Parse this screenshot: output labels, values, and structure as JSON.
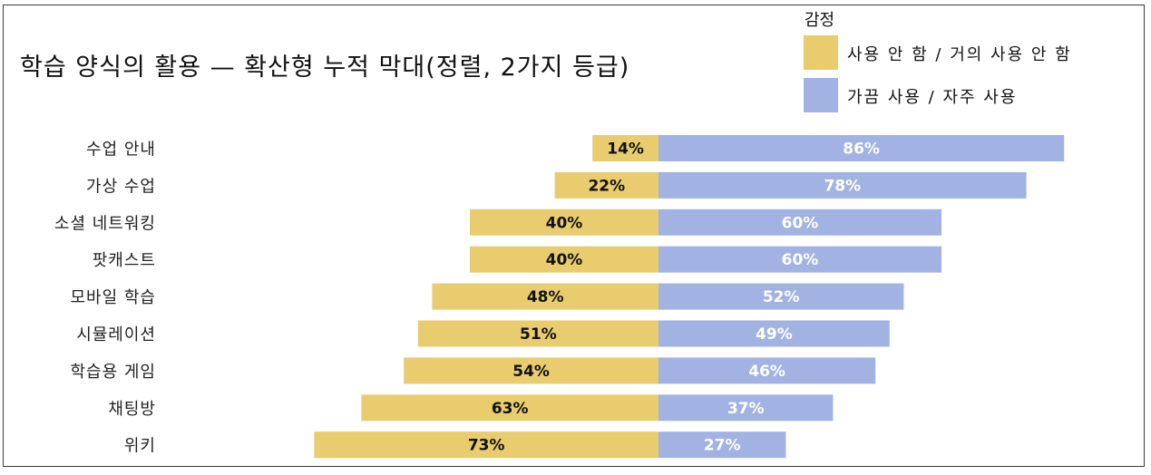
{
  "chart_data": {
    "type": "bar",
    "title": "학습 양식의 활용 — 확산형 누적 막대(정렬, 2가지 등급)",
    "legend_title": "감정",
    "legend_position": "top-right",
    "categories": [
      "수업 안내",
      "가상 수업",
      "소셜 네트워킹",
      "팟캐스트",
      "모바일 학습",
      "시뮬레이션",
      "학습용 게임",
      "채팅방",
      "위키"
    ],
    "series": [
      {
        "name": "사용 안 함 / 거의 사용 안 함",
        "color": "#e8cc6e",
        "label_color": "#111111",
        "direction": "left",
        "values": [
          14,
          22,
          40,
          40,
          48,
          51,
          54,
          63,
          73
        ]
      },
      {
        "name": "가끔 사용 / 자주 사용",
        "color": "#a2b3e3",
        "label_color": "#ffffff",
        "direction": "right",
        "values": [
          86,
          78,
          60,
          60,
          52,
          49,
          46,
          37,
          27
        ]
      }
    ],
    "value_suffix": "%",
    "grid": false
  }
}
